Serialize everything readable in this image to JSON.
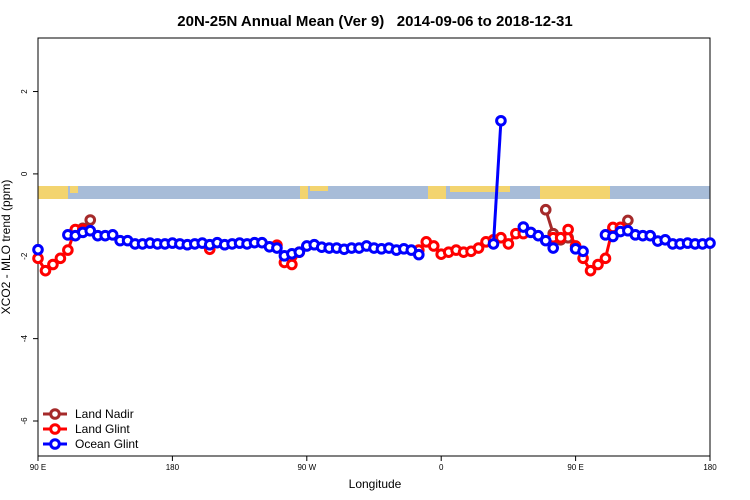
{
  "chart_data": {
    "type": "line",
    "title": "20N-25N Annual Mean (Ver 9)   2014-09-06 to 2018-12-31",
    "x_label": "Longitude",
    "y_label": "XCO2 - MLO trend (ppm)",
    "x": [
      90,
      95,
      100,
      105,
      110,
      115,
      120,
      125,
      130,
      135,
      140,
      145,
      150,
      155,
      160,
      165,
      170,
      175,
      180,
      185,
      190,
      195,
      200,
      205,
      210,
      215,
      220,
      225,
      230,
      235,
      240,
      245,
      250,
      255,
      260,
      265,
      270,
      275,
      280,
      285,
      290,
      295,
      300,
      305,
      310,
      315,
      320,
      325,
      330,
      335,
      340,
      345,
      350,
      355,
      360,
      365,
      370,
      375,
      380,
      385,
      390,
      395,
      400,
      405,
      410,
      415,
      420,
      425,
      430,
      435,
      440,
      445,
      450,
      455,
      460,
      465,
      470,
      475,
      480,
      485,
      490,
      495,
      500,
      505,
      510,
      515,
      520,
      525,
      530,
      535,
      540
    ],
    "xlim": [
      90,
      540
    ],
    "xticks": [
      {
        "value": 90,
        "label": "90 E"
      },
      180,
      {
        "value": 270,
        "label": "90 W"
      },
      {
        "value": 360,
        "label": "0"
      },
      {
        "value": 450,
        "label": "90 E"
      },
      {
        "value": 540,
        "label": "180"
      }
    ],
    "ylim": [
      -6.85,
      3.3
    ],
    "yticks": [
      -6,
      -4,
      -2,
      0,
      2
    ],
    "legend": "bottom-left",
    "series": [
      {
        "name": "Land Nadir",
        "color": "#a52a2a",
        "values": [
          null,
          null,
          null,
          null,
          null,
          -1.38,
          -1.32,
          -1.12,
          null,
          null,
          null,
          null,
          null,
          null,
          null,
          null,
          null,
          null,
          null,
          null,
          null,
          null,
          null,
          null,
          null,
          null,
          null,
          null,
          null,
          null,
          null,
          null,
          null,
          null,
          null,
          null,
          null,
          null,
          null,
          null,
          null,
          null,
          null,
          null,
          null,
          null,
          null,
          null,
          null,
          null,
          null,
          null,
          null,
          null,
          null,
          null,
          null,
          null,
          null,
          null,
          null,
          null,
          null,
          null,
          null,
          null,
          null,
          null,
          -0.87,
          -1.45,
          -1.6,
          -1.55,
          null,
          null,
          null,
          null,
          null,
          -1.35,
          -1.3,
          -1.13,
          null,
          null,
          null,
          null,
          null,
          null,
          null,
          null,
          null,
          null,
          null
        ]
      },
      {
        "name": "Land Glint",
        "color": "#ff0000",
        "values": [
          -2.05,
          -2.35,
          -2.2,
          -2.05,
          -1.85,
          -1.35,
          -1.35,
          null,
          null,
          null,
          null,
          null,
          null,
          null,
          null,
          null,
          null,
          null,
          null,
          null,
          null,
          null,
          null,
          -1.83,
          null,
          null,
          null,
          null,
          null,
          null,
          null,
          null,
          -1.73,
          -2.15,
          -2.2,
          -1.9,
          null,
          null,
          null,
          null,
          null,
          null,
          null,
          null,
          null,
          null,
          null,
          null,
          null,
          null,
          null,
          -1.85,
          -1.65,
          -1.75,
          -1.95,
          -1.9,
          -1.85,
          -1.9,
          -1.88,
          -1.8,
          -1.65,
          -1.6,
          -1.55,
          -1.7,
          -1.45,
          -1.45,
          null,
          null,
          null,
          -1.55,
          -1.55,
          -1.35,
          -1.75,
          -2.05,
          -2.35,
          -2.2,
          -2.05,
          -1.3,
          -1.3,
          null,
          null,
          null,
          null,
          null,
          null,
          null,
          null,
          null,
          null,
          null,
          null
        ]
      },
      {
        "name": "Ocean Glint",
        "color": "#0000ff",
        "values": [
          -1.84,
          null,
          null,
          null,
          -1.48,
          -1.5,
          -1.42,
          -1.38,
          -1.5,
          -1.5,
          -1.48,
          -1.62,
          -1.62,
          -1.7,
          -1.7,
          -1.68,
          -1.7,
          -1.7,
          -1.68,
          -1.7,
          -1.72,
          -1.7,
          -1.68,
          -1.72,
          -1.67,
          -1.72,
          -1.7,
          -1.68,
          -1.7,
          -1.67,
          -1.67,
          -1.77,
          -1.8,
          -1.99,
          -1.94,
          -1.9,
          -1.75,
          -1.72,
          -1.78,
          -1.8,
          -1.8,
          -1.83,
          -1.8,
          -1.8,
          -1.75,
          -1.8,
          -1.82,
          -1.8,
          -1.85,
          -1.82,
          -1.85,
          -1.96,
          null,
          null,
          null,
          null,
          null,
          null,
          null,
          null,
          null,
          -1.7,
          1.29,
          null,
          null,
          -1.29,
          -1.42,
          -1.5,
          -1.62,
          -1.8,
          null,
          null,
          -1.82,
          -1.88,
          null,
          null,
          -1.48,
          -1.52,
          -1.4,
          -1.38,
          -1.48,
          -1.5,
          -1.5,
          -1.63,
          -1.6,
          -1.7,
          -1.7,
          -1.68,
          -1.7,
          -1.7,
          -1.68
        ]
      }
    ]
  }
}
